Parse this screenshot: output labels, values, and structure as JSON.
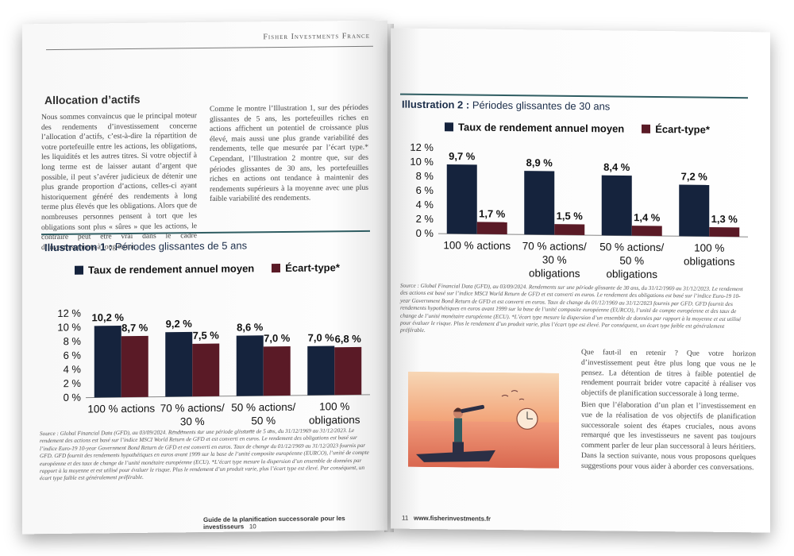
{
  "header": {
    "brand": "Fisher Investments France"
  },
  "left_page": {
    "section_title": "Allocation d’actifs",
    "col1": "Nous sommes convaincus que le principal moteur des rendements d’investissement concerne l’allocation d’actifs, c’est-à-dire la répartition de votre portefeuille entre les actions, les obligations, les liquidités et les autres titres. Si votre objectif à long terme est de laisser autant d’argent que possible, il peut s’avérer judicieux de détenir une plus grande proportion d’actions, celles-ci ayant historiquement généré des rendements à long terme plus élevés que les obligations. Alors que de nombreuses personnes pensent à tort que les obligations sont plus « sûres » que les actions, le contraire peut être vrai dans le cadre d’investissements à long terme.",
    "col2": "Comme le montre l’Illustration 1, sur des périodes glissantes de 5 ans, les portefeuilles riches en actions affichent un potentiel de croissance plus élevé, mais aussi une plus grande variabilité des rendements, telle que mesurée par l’écart type.* Cependant, l’Illustration 2 montre que, sur des périodes glissantes de 30 ans, les portefeuilles riches en actions ont tendance à maintenir des rendements supérieurs à la moyenne avec une plus faible variabilité des rendements.",
    "illus_label": "Illustration 1 :",
    "illus_title": "Périodes glissantes de 5 ans",
    "source": "Source : Global Financial Data (GFD), au 03/09/2024. Rendements sur une période glissante de 5 ans, du 31/12/1969 au 31/12/2023. Le rendement des actions est basé sur l’indice MSCI World Return de GFD et est converti en euros. Le rendement des obligations est basé sur l’indice Euro-19 10-year Government Bond Return de GFD et est converti en euros. Taux de change du 01/12/1969 au 31/12/2023 fournis par GFD. GFD fournit des rendements hypothétiques en euros avant 1999 sur la base de l’unité composite européenne (EURCO), l’unité de compte européenne et des taux de change de l’unité monétaire européenne (ECU). *L’écart type mesure la dispersion d’un ensemble de données par rapport à la moyenne et est utilisé pour évaluer le risque. Plus le rendement d’un produit varie, plus l’écart type est élevé. Par conséquent, un écart type faible est généralement préférable.",
    "footer_title": "Guide de la planification successorale pour les investisseurs",
    "page_number": "10"
  },
  "right_page": {
    "illus_label": "Illustration 2 :",
    "illus_title": "Périodes glissantes de 30 ans",
    "source": "Source : Global Financial Data (GFD), au 03/09/2024. Rendements sur une période glissante de 30 ans, du 31/12/1969 au 31/12/2023. Le rendement des actions est basé sur l’indice MSCI World Return de GFD et est converti en euros. Le rendement des obligations est basé sur l’indice Euro-19 10-year Government Bond Return de GFD et est converti en euros. Taux de change du 01/12/1969 au 31/12/2023 fournis par GFD. GFD fournit des rendements hypothétiques en euros avant 1999 sur la base de l’unité composite européenne (EURCO), l’unité de compte européenne et des taux de change de l’unité monétaire européenne (ECU). *L’écart type mesure la dispersion d’un ensemble de données par rapport à la moyenne et est utilisé pour évaluer le risque. Plus le rendement d’un produit varie, plus l’écart type est élevé. Par conséquent, un écart type faible est généralement préférable.",
    "para1": "Que faut-il en retenir ? Que votre horizon d’investissement peut être plus long que vous ne le pensez. La détention de titres à faible potentiel de rendement pourrait brider votre capacité à réaliser vos objectifs de planification successorale à long terme.",
    "para2": "Bien que l’élaboration d’un plan et l’investissement en vue de la réalisation de vos objectifs de planification successorale soient des étapes cruciales, nous avons remarqué que les investisseurs ne savent pas toujours comment parler de leur plan successoral à leurs héritiers. Dans la section suivante, nous vous proposons quelques suggestions pour vous aider à aborder ces conversations.",
    "page_number": "11",
    "website": "www.fisherinvestments.fr"
  },
  "colors": {
    "navy": "#15233d",
    "maroon": "#5a1a26",
    "accent": "#2f5d62"
  },
  "chart_data": [
    {
      "type": "bar",
      "title": "Illustration 1 : Périodes glissantes de 5 ans",
      "categories": [
        "100 % actions",
        "70 % actions/ 30 % obligations",
        "50 % actions/ 50 % obligations",
        "100 % obligations"
      ],
      "series": [
        {
          "name": "Taux de rendement annuel moyen",
          "values": [
            10.2,
            9.2,
            8.6,
            7.0
          ],
          "labels": [
            "10,2 %",
            "9,2 %",
            "8,6 %",
            "7,0 %"
          ],
          "color": "#15233d"
        },
        {
          "name": "Écart-type*",
          "values": [
            8.7,
            7.5,
            7.0,
            6.8
          ],
          "labels": [
            "8,7 %",
            "7,5 %",
            "7,0 %",
            "6,8 %"
          ],
          "color": "#5a1a26"
        }
      ],
      "yticks": [
        "0 %",
        "2 %",
        "4 %",
        "6 %",
        "8 %",
        "10 %",
        "12 %"
      ],
      "ylim": [
        0,
        12
      ],
      "legend": "top"
    },
    {
      "type": "bar",
      "title": "Illustration 2 : Périodes glissantes de 30 ans",
      "categories": [
        "100 % actions",
        "70 % actions/ 30 % obligations",
        "50 % actions/ 50 % obligations",
        "100 % obligations"
      ],
      "series": [
        {
          "name": "Taux de rendement annuel moyen",
          "values": [
            9.7,
            8.9,
            8.4,
            7.2
          ],
          "labels": [
            "9,7 %",
            "8,9 %",
            "8,4 %",
            "7,2 %"
          ],
          "color": "#15233d"
        },
        {
          "name": "Écart-type*",
          "values": [
            1.7,
            1.5,
            1.4,
            1.3
          ],
          "labels": [
            "1,7 %",
            "1,5 %",
            "1,4 %",
            "1,3 %"
          ],
          "color": "#5a1a26"
        }
      ],
      "yticks": [
        "0 %",
        "2 %",
        "4 %",
        "6 %",
        "8 %",
        "10 %",
        "12 %"
      ],
      "ylim": [
        0,
        12
      ],
      "legend": "top"
    }
  ]
}
